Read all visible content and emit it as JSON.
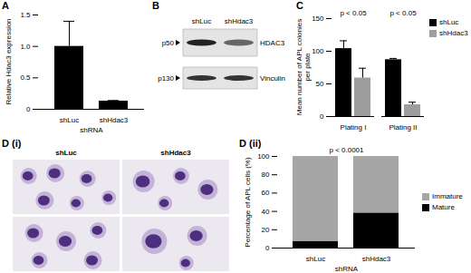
{
  "chart_data": [
    {
      "panel": "A",
      "type": "bar",
      "categories": [
        "shLuc",
        "shHdac3"
      ],
      "values": [
        1.0,
        0.13
      ],
      "errors": [
        0.4,
        0.01
      ],
      "color": "#000000",
      "xlabel": "shRNA",
      "ylabel": "Relative Hdac3 expression",
      "ylim": [
        0,
        1.5
      ],
      "yticks": [
        0,
        0.5,
        {
          "value": 1,
          "label": "1.0"
        },
        1.5
      ]
    },
    {
      "panel": "C",
      "type": "bar",
      "categories": [
        "Plating I",
        "Plating II"
      ],
      "series": [
        {
          "name": "shLuc",
          "color": "#000000",
          "values": [
            104,
            87
          ],
          "errors": [
            12,
            2
          ]
        },
        {
          "name": "shHdac3",
          "color": "#9e9e9e",
          "values": [
            59,
            18
          ],
          "errors": [
            15,
            4
          ]
        }
      ],
      "ylabel": "Mean number of APL colonies per plate",
      "ylim": [
        0,
        150
      ],
      "yticks": [
        0,
        50,
        100,
        150
      ],
      "legend": "top-right",
      "annotations": [
        {
          "text": "p < 0.05",
          "category": "Plating I"
        },
        {
          "text": "p < 0.05",
          "category": "Plating II"
        }
      ]
    },
    {
      "panel": "D (ii)",
      "type": "bar",
      "stacked": true,
      "categories": [
        "shLuc",
        "shHdac3"
      ],
      "series": [
        {
          "name": "Immature",
          "color": "#a6a6a6",
          "values": [
            93,
            62
          ]
        },
        {
          "name": "Mature",
          "color": "#000000",
          "values": [
            7,
            38
          ]
        }
      ],
      "xlabel": "shRNA",
      "ylabel": "Percentage of APL cells (%)",
      "ylim": [
        0,
        100
      ],
      "yticks": [
        0,
        20,
        40,
        60,
        80,
        100
      ],
      "legend": "right",
      "annotations": [
        {
          "text": "p < 0.0001"
        }
      ]
    }
  ],
  "blot": {
    "panel": "B",
    "lanes": [
      "shLuc",
      "shHdac3"
    ],
    "rows": [
      {
        "size": "p50",
        "protein": "HDAC3"
      },
      {
        "size": "p130",
        "protein": "Vinculin"
      }
    ]
  },
  "micrographs": {
    "panel": "D (i)",
    "columns": [
      "shLuc",
      "shHdac3"
    ]
  }
}
